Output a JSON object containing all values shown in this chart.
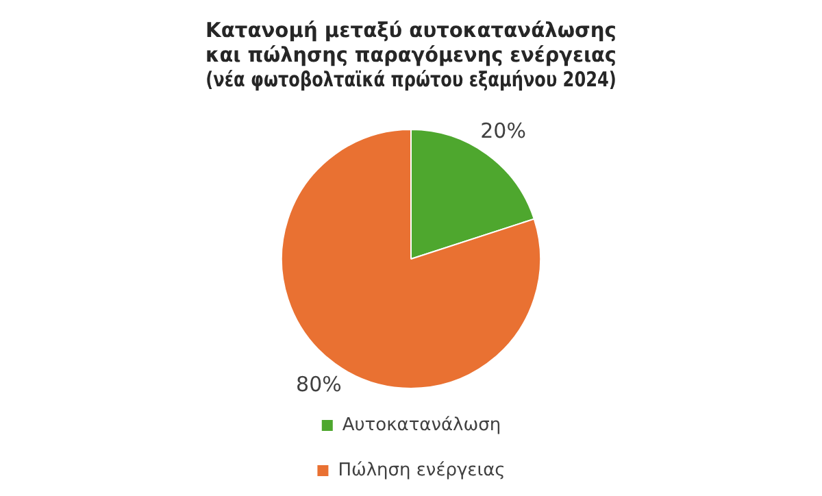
{
  "chart_data": {
    "type": "pie",
    "title": "Κατανομή μεταξύ αυτοκατανάλωσης\nκαι πώλησης παραγόμενης ενέργειας\n(νέα φωτοβολταϊκά πρώτου εξαμήνου 2024)",
    "categories": [
      "Αυτοκατανάλωση",
      "Πώληση ενέργειας"
    ],
    "values": [
      20,
      80
    ],
    "colors": [
      "#4ea72e",
      "#e97132"
    ],
    "value_labels": [
      "20%",
      "80%"
    ],
    "legend": "bottom"
  }
}
